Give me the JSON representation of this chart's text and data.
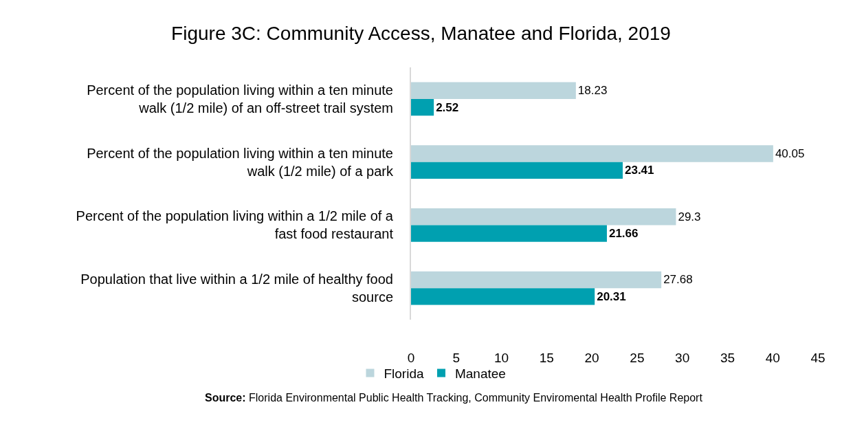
{
  "chart_data": {
    "type": "bar",
    "orientation": "horizontal",
    "title": "Figure 3C: Community Access, Manatee and Florida, 2019",
    "categories": [
      "Percent of the population living within a ten minute walk (1/2 mile) of an off-street trail system",
      "Percent of the population living within a ten minute walk (1/2 mile) of a park",
      "Percent of the population living within a 1/2 mile of a fast food restaurant",
      "Population that live within a 1/2 mile of healthy food source"
    ],
    "series": [
      {
        "name": "Florida",
        "color": "#bcd6dd",
        "values": [
          18.23,
          40.05,
          29.3,
          27.68
        ]
      },
      {
        "name": "Manatee",
        "color": "#00a0b0",
        "values": [
          2.52,
          23.41,
          21.66,
          20.31
        ]
      }
    ],
    "xlim": [
      0,
      45
    ],
    "xticks": [
      0,
      5,
      10,
      15,
      20,
      25,
      30,
      35,
      40,
      45
    ],
    "data_labels": true,
    "legend": "bottom",
    "annotations": [
      "Source: Florida Environmental Public Health Tracking, Community Enviromental Health Profile Report"
    ]
  }
}
